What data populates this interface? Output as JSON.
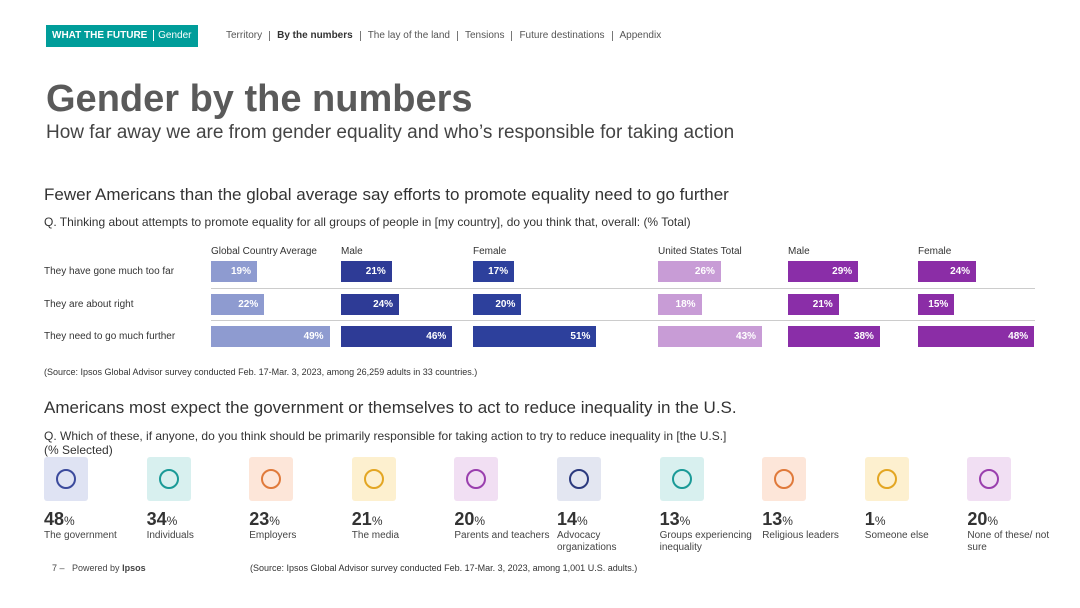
{
  "nav": {
    "brand": "WHAT THE FUTURE",
    "section": "Gender",
    "links": [
      "Territory",
      "By the numbers",
      "The lay of the land",
      "Tensions",
      "Future destinations",
      "Appendix"
    ]
  },
  "title": "Gender by the numbers",
  "subtitle": "How far away we are from gender equality and who’s responsible for taking action",
  "chart1": {
    "heading": "Fewer Americans than the global average say efforts to promote equality need to go further",
    "question": "Q. Thinking about attempts to promote equality for all groups of people in [my country], do you think that, overall: (% Total)",
    "rows": [
      "They have gone much too far",
      "They are about right",
      "They need to go much further"
    ],
    "groups": [
      {
        "name": "Global Country Average",
        "color": "#8e9bd0",
        "values": [
          19,
          22,
          49
        ],
        "value_labels": [
          "19%",
          "22%",
          "49%"
        ]
      },
      {
        "name": "Male",
        "color": "#2e3b96",
        "values": [
          21,
          24,
          46
        ],
        "value_labels": [
          "21%",
          "24%",
          "46%"
        ]
      },
      {
        "name": "Female",
        "color": "#2d409c",
        "values": [
          17,
          20,
          51
        ],
        "value_labels": [
          "17%",
          "20%",
          "51%"
        ]
      },
      {
        "name": "United States Total",
        "color": "#c89cd6",
        "values": [
          26,
          18,
          43
        ],
        "value_labels": [
          "26%",
          "18%",
          "43%"
        ]
      },
      {
        "name": "Male",
        "color": "#8a2ea8",
        "values": [
          29,
          21,
          38
        ],
        "value_labels": [
          "29%",
          "21%",
          "38%"
        ]
      },
      {
        "name": "Female",
        "color": "#8b2da6",
        "values": [
          24,
          15,
          48
        ],
        "value_labels": [
          "24%",
          "15%",
          "48%"
        ]
      }
    ],
    "source": "(Source: Ipsos Global Advisor survey conducted Feb. 17-Mar. 3, 2023, among 26,259 adults in 33 countries.)"
  },
  "chart2": {
    "heading": "Americans most expect the government or themselves to act to reduce inequality in the U.S.",
    "question": "Q. Which of these, if anyone, do you think should be primarily responsible for taking action to try to reduce inequality in [the U.S.]",
    "question_note": "(% Selected)",
    "unit": "%",
    "items": [
      {
        "value": 48,
        "label": "The government"
      },
      {
        "value": 34,
        "label": "Individuals"
      },
      {
        "value": 23,
        "label": "Employers"
      },
      {
        "value": 21,
        "label": "The media"
      },
      {
        "value": 20,
        "label": "Parents and teachers"
      },
      {
        "value": 14,
        "label": "Advocacy organizations"
      },
      {
        "value": 13,
        "label": "Groups experiencing inequality"
      },
      {
        "value": 13,
        "label": "Religious leaders"
      },
      {
        "value": 1,
        "label": "Someone else"
      },
      {
        "value": 20,
        "label": "None of these/ not sure"
      }
    ],
    "source": "(Source: Ipsos Global Advisor survey conducted Feb. 17-Mar. 3, 2023, among 1,001 U.S. adults.)"
  },
  "footer": {
    "page": "7 –",
    "powered": "Powered by",
    "brand": "Ipsos"
  }
}
